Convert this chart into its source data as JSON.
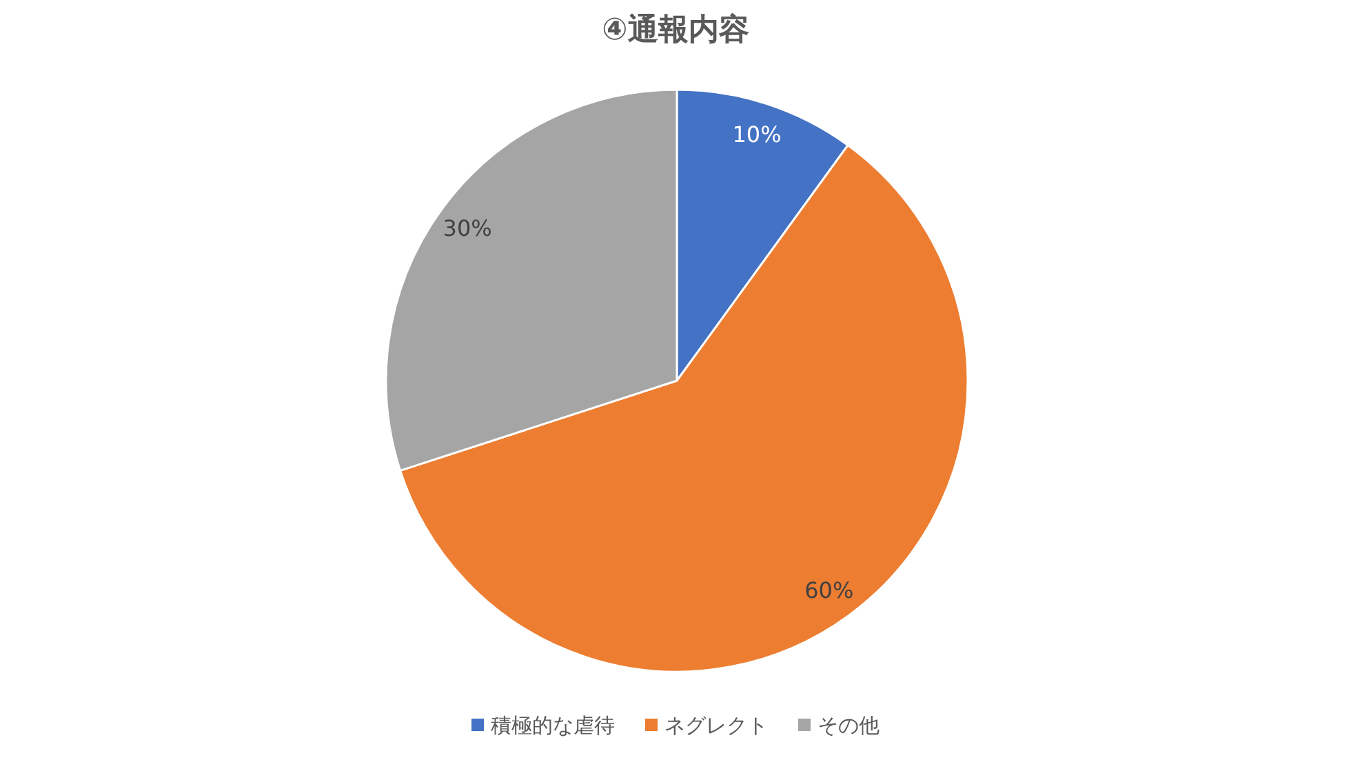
{
  "chart_data": {
    "type": "pie",
    "title": "④通報内容",
    "categories": [
      "積極的な虐待",
      "ネグレクト",
      "その他"
    ],
    "values": [
      10,
      60,
      30
    ],
    "value_labels": [
      "10%",
      "60%",
      "30%"
    ],
    "colors": [
      "#4472c4",
      "#ed7d31",
      "#a5a5a5"
    ],
    "legend": "bottom"
  }
}
